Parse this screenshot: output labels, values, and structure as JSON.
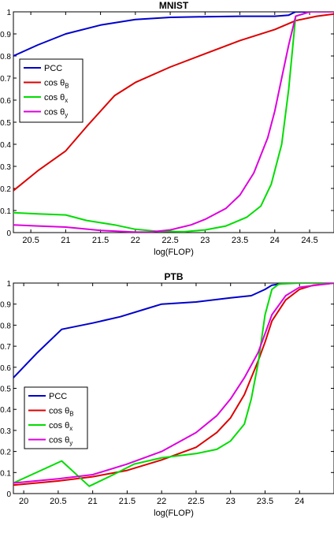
{
  "chart_data": [
    {
      "type": "line",
      "title": "MNIST",
      "xlabel": "log(FLOP)",
      "ylabel": "",
      "xlim": [
        20.25,
        24.85
      ],
      "ylim": [
        0,
        1
      ],
      "xticks": [
        "20.5",
        "21",
        "21.5",
        "22",
        "22.5",
        "23",
        "23.5",
        "24",
        "24.5"
      ],
      "xtick_values": [
        20.5,
        21,
        21.5,
        22,
        22.5,
        23,
        23.5,
        24,
        24.5
      ],
      "yticks": [
        "0",
        "0.1",
        "0.2",
        "0.3",
        "0.4",
        "0.5",
        "0.6",
        "0.7",
        "0.8",
        "0.9",
        "1"
      ],
      "ytick_values": [
        0,
        0.1,
        0.2,
        0.3,
        0.4,
        0.5,
        0.6,
        0.7,
        0.8,
        0.9,
        1
      ],
      "legend": {
        "placement": "center-left",
        "entries": [
          {
            "base": "PCC",
            "sub": ""
          },
          {
            "base": "cos θ",
            "sub": "B"
          },
          {
            "base": "cos θ",
            "sub": "x"
          },
          {
            "base": "cos θ",
            "sub": "y"
          }
        ]
      },
      "series": [
        {
          "color": "#0000cc",
          "x": [
            20.25,
            20.6,
            21.0,
            21.5,
            22.0,
            22.5,
            23.0,
            23.5,
            24.0,
            24.2,
            24.3,
            24.5,
            24.85
          ],
          "y": [
            0.8,
            0.85,
            0.9,
            0.94,
            0.965,
            0.975,
            0.978,
            0.98,
            0.98,
            0.985,
            1.0,
            1.0,
            1.0
          ]
        },
        {
          "color": "#dd0000",
          "x": [
            20.25,
            20.6,
            21.0,
            21.3,
            21.7,
            22.0,
            22.5,
            23.0,
            23.5,
            24.0,
            24.3,
            24.6,
            24.85
          ],
          "y": [
            0.19,
            0.28,
            0.37,
            0.48,
            0.62,
            0.68,
            0.75,
            0.81,
            0.87,
            0.92,
            0.96,
            0.98,
            0.99
          ]
        },
        {
          "color": "#00dd00",
          "x": [
            20.25,
            20.6,
            21.0,
            21.3,
            21.7,
            22.0,
            22.3,
            22.7,
            23.0,
            23.3,
            23.6,
            23.8,
            23.95,
            24.1,
            24.2,
            24.3,
            24.5,
            24.85
          ],
          "y": [
            0.09,
            0.085,
            0.08,
            0.055,
            0.035,
            0.015,
            0.006,
            0.004,
            0.012,
            0.03,
            0.07,
            0.12,
            0.22,
            0.4,
            0.65,
            0.98,
            1.0,
            1.0
          ]
        },
        {
          "color": "#dd00dd",
          "x": [
            20.25,
            20.6,
            21.0,
            21.5,
            22.0,
            22.2,
            22.5,
            22.8,
            23.0,
            23.3,
            23.5,
            23.7,
            23.9,
            24.0,
            24.1,
            24.2,
            24.3,
            24.5,
            24.85
          ],
          "y": [
            0.035,
            0.03,
            0.025,
            0.01,
            0.002,
            0.002,
            0.012,
            0.035,
            0.06,
            0.11,
            0.17,
            0.27,
            0.43,
            0.55,
            0.7,
            0.85,
            0.98,
            1.0,
            1.0
          ]
        }
      ]
    },
    {
      "type": "line",
      "title": "PTB",
      "xlabel": "log(FLOP)",
      "ylabel": "",
      "xlim": [
        19.85,
        24.5
      ],
      "ylim": [
        0,
        1
      ],
      "xticks": [
        "20",
        "20.5",
        "21",
        "21.5",
        "22",
        "22.5",
        "23",
        "23.5",
        "24"
      ],
      "xtick_values": [
        20,
        20.5,
        21,
        21.5,
        22,
        22.5,
        23,
        23.5,
        24
      ],
      "yticks": [
        "0",
        "0.1",
        "0.2",
        "0.3",
        "0.4",
        "0.5",
        "0.6",
        "0.7",
        "0.8",
        "0.9",
        "1"
      ],
      "ytick_values": [
        0,
        0.1,
        0.2,
        0.3,
        0.4,
        0.5,
        0.6,
        0.7,
        0.8,
        0.9,
        1
      ],
      "legend": {
        "placement": "lower-left",
        "entries": [
          {
            "base": "PCC",
            "sub": ""
          },
          {
            "base": "cos θ",
            "sub": "B"
          },
          {
            "base": "cos θ",
            "sub": "x"
          },
          {
            "base": "cos θ",
            "sub": "y"
          }
        ]
      },
      "series": [
        {
          "color": "#0000cc",
          "x": [
            19.85,
            20.2,
            20.55,
            21.0,
            21.4,
            21.8,
            22.0,
            22.5,
            23.0,
            23.3,
            23.5,
            23.6,
            23.8,
            24.0,
            24.5
          ],
          "y": [
            0.55,
            0.67,
            0.78,
            0.81,
            0.84,
            0.88,
            0.9,
            0.91,
            0.93,
            0.94,
            0.97,
            0.99,
            1.0,
            1.0,
            1.0
          ]
        },
        {
          "color": "#dd0000",
          "x": [
            19.85,
            20.5,
            21.0,
            21.5,
            22.0,
            22.5,
            22.8,
            23.0,
            23.2,
            23.4,
            23.5,
            23.6,
            23.8,
            24.0,
            24.2,
            24.5
          ],
          "y": [
            0.04,
            0.06,
            0.08,
            0.11,
            0.16,
            0.22,
            0.29,
            0.36,
            0.47,
            0.63,
            0.72,
            0.82,
            0.92,
            0.97,
            0.99,
            1.0
          ]
        },
        {
          "color": "#00dd00",
          "x": [
            19.85,
            20.55,
            20.95,
            21.3,
            21.6,
            22.0,
            22.5,
            22.8,
            23.0,
            23.2,
            23.3,
            23.4,
            23.5,
            23.6,
            23.7,
            24.0,
            24.5
          ],
          "y": [
            0.05,
            0.155,
            0.035,
            0.09,
            0.14,
            0.17,
            0.19,
            0.21,
            0.25,
            0.33,
            0.45,
            0.62,
            0.85,
            0.97,
            0.995,
            1.0,
            1.0
          ]
        },
        {
          "color": "#dd00dd",
          "x": [
            19.85,
            20.5,
            21.0,
            21.5,
            22.0,
            22.5,
            22.8,
            23.0,
            23.2,
            23.4,
            23.5,
            23.6,
            23.8,
            24.0,
            24.5
          ],
          "y": [
            0.05,
            0.07,
            0.09,
            0.14,
            0.2,
            0.29,
            0.37,
            0.45,
            0.55,
            0.67,
            0.76,
            0.85,
            0.94,
            0.98,
            1.0
          ]
        }
      ]
    }
  ]
}
